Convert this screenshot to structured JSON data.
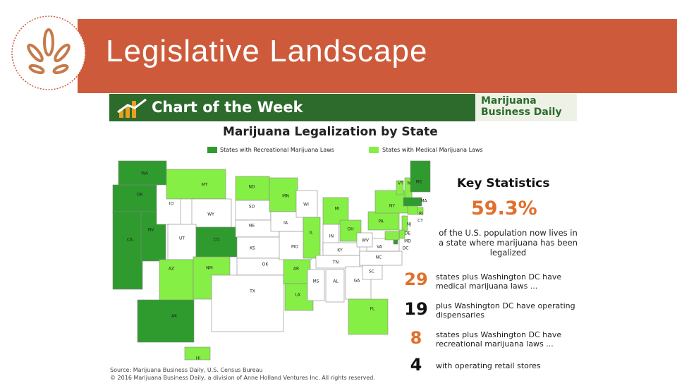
{
  "header": {
    "title": "Legislative Landscape"
  },
  "banner": {
    "title": "Chart of the Week",
    "brand": [
      "Marijuana",
      "Business Daily"
    ]
  },
  "map": {
    "title": "Marijuana Legalization by State",
    "legend": [
      {
        "label": "States with Recreational Marijuana Laws",
        "color": "#2f9b2f"
      },
      {
        "label": "States with Medical Marijuana Laws",
        "color": "#86ef45"
      }
    ],
    "none_color": "#ffffff",
    "states": [
      {
        "abbr": "WA",
        "law": 0
      },
      {
        "abbr": "OR",
        "law": 0
      },
      {
        "abbr": "CA",
        "law": 0
      },
      {
        "abbr": "NV",
        "law": 0
      },
      {
        "abbr": "ID",
        "law": null
      },
      {
        "abbr": "MT",
        "law": 1
      },
      {
        "abbr": "WY",
        "law": null
      },
      {
        "abbr": "UT",
        "law": null
      },
      {
        "abbr": "CO",
        "law": 0
      },
      {
        "abbr": "AZ",
        "law": 1
      },
      {
        "abbr": "NM",
        "law": 1
      },
      {
        "abbr": "ND",
        "law": 1
      },
      {
        "abbr": "SD",
        "law": null
      },
      {
        "abbr": "NE",
        "law": null
      },
      {
        "abbr": "KS",
        "law": null
      },
      {
        "abbr": "OK",
        "law": null
      },
      {
        "abbr": "TX",
        "law": null
      },
      {
        "abbr": "MN",
        "law": 1
      },
      {
        "abbr": "IA",
        "law": null
      },
      {
        "abbr": "MO",
        "law": null
      },
      {
        "abbr": "AR",
        "law": 1
      },
      {
        "abbr": "LA",
        "law": 1
      },
      {
        "abbr": "WI",
        "law": null
      },
      {
        "abbr": "IL",
        "law": 1
      },
      {
        "abbr": "MI",
        "law": 1
      },
      {
        "abbr": "IN",
        "law": null
      },
      {
        "abbr": "OH",
        "law": 1
      },
      {
        "abbr": "KY",
        "law": null
      },
      {
        "abbr": "TN",
        "law": null
      },
      {
        "abbr": "MS",
        "law": null
      },
      {
        "abbr": "AL",
        "law": null
      },
      {
        "abbr": "GA",
        "law": null
      },
      {
        "abbr": "FL",
        "law": 1
      },
      {
        "abbr": "SC",
        "law": null
      },
      {
        "abbr": "NC",
        "law": null
      },
      {
        "abbr": "VA",
        "law": null
      },
      {
        "abbr": "WV",
        "law": null
      },
      {
        "abbr": "PA",
        "law": 1
      },
      {
        "abbr": "NY",
        "law": 1
      },
      {
        "abbr": "VT",
        "law": 1
      },
      {
        "abbr": "NH",
        "law": 1
      },
      {
        "abbr": "ME",
        "law": 0
      },
      {
        "abbr": "MA",
        "law": 0
      },
      {
        "abbr": "RI",
        "law": 1
      },
      {
        "abbr": "CT",
        "law": 1
      },
      {
        "abbr": "NJ",
        "law": 1
      },
      {
        "abbr": "DE",
        "law": 1
      },
      {
        "abbr": "MD",
        "law": 1
      },
      {
        "abbr": "DC",
        "law": 0
      },
      {
        "abbr": "AK",
        "law": 0
      },
      {
        "abbr": "HI",
        "law": 1
      }
    ]
  },
  "key_statistics": {
    "title": "Key Statistics",
    "headline": "59.3%",
    "headline_text": "of the U.S. population now lives in a state where marijuana has been legalized",
    "items": [
      {
        "number": 29,
        "text": "states plus Washington DC have medical marijuana laws ..."
      },
      {
        "number": 19,
        "text": "plus Washington DC have operating dispensaries"
      },
      {
        "number": 8,
        "text": "states plus Washington DC have recreational marijuana laws ..."
      },
      {
        "number": 4,
        "text": "with operating retail stores"
      }
    ]
  },
  "source": [
    "Source: Marijuana Business Daily, U.S. Census Bureau",
    "© 2016 Marijuana Business Daily, a division of Anne Holland Ventures Inc. All rights reserved."
  ]
}
